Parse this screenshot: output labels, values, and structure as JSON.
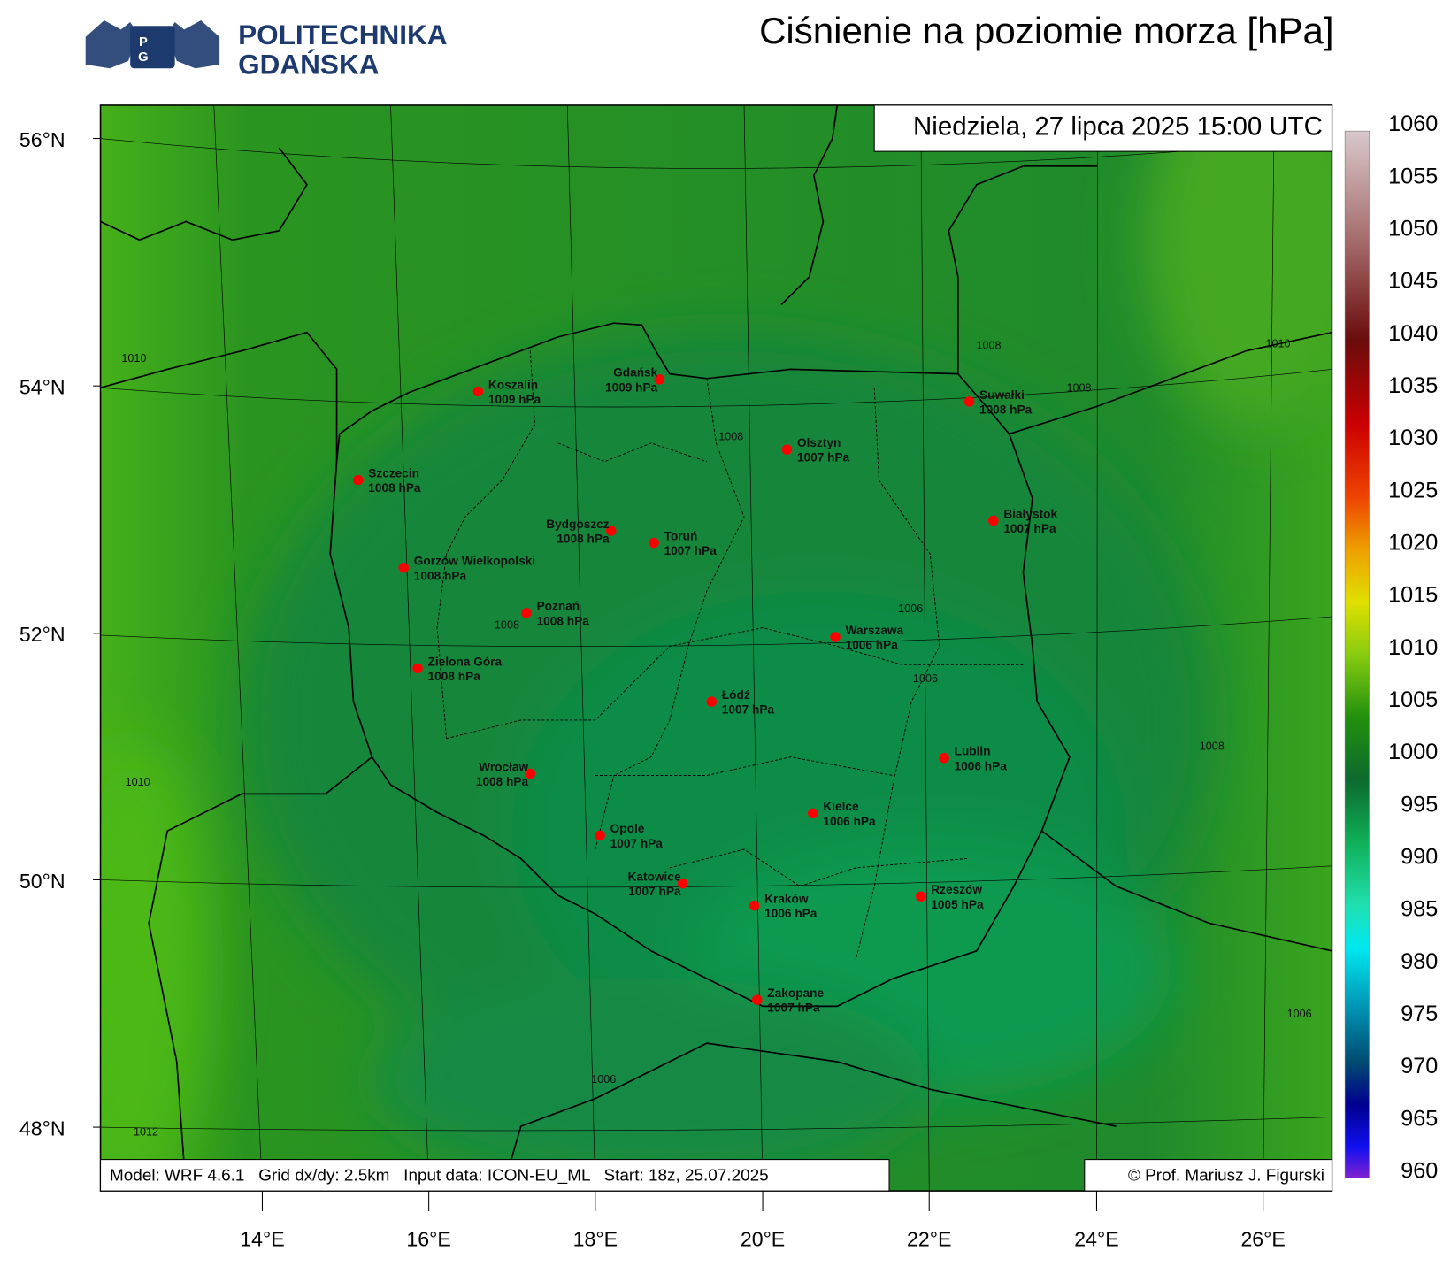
{
  "header": {
    "logo": {
      "shield": [
        "P",
        "G"
      ],
      "line1": "POLITECHNIKA",
      "line2": "GDAŃSKA"
    },
    "title": "Ciśnienie na poziomie morza [hPa]"
  },
  "map": {
    "date": "Niedziela, 27 lipca 2025 15:00 UTC",
    "footer": "Model: WRF 4.6.1   Grid dx/dy: 2.5km   Input data: ICON-EU_ML   Start: 18z, 25.07.2025",
    "copyright": "© Prof. Mariusz J. Figurski",
    "lat_labels": [
      "56°N",
      "54°N",
      "52°N",
      "50°N",
      "48°N"
    ],
    "lon_labels": [
      "14°E",
      "16°E",
      "18°E",
      "20°E",
      "22°E",
      "24°E",
      "26°E"
    ],
    "cities": [
      {
        "name": "Koszalin",
        "value": "1009 hPa"
      },
      {
        "name": "Gdańsk",
        "value": "1009 hPa"
      },
      {
        "name": "Suwałki",
        "value": "1008 hPa"
      },
      {
        "name": "Olsztyn",
        "value": "1007 hPa"
      },
      {
        "name": "Szczecin",
        "value": "1008 hPa"
      },
      {
        "name": "Bydgoszcz",
        "value": "1008 hPa"
      },
      {
        "name": "Toruń",
        "value": "1007 hPa"
      },
      {
        "name": "Białystok",
        "value": "1007 hPa"
      },
      {
        "name": "Gorzów Wielkopolski",
        "value": "1008 hPa"
      },
      {
        "name": "Poznań",
        "value": "1008 hPa"
      },
      {
        "name": "Warszawa",
        "value": "1006 hPa"
      },
      {
        "name": "Zielona Góra",
        "value": "1008 hPa"
      },
      {
        "name": "Łódź",
        "value": "1007 hPa"
      },
      {
        "name": "Lublin",
        "value": "1006 hPa"
      },
      {
        "name": "Wrocław",
        "value": "1008 hPa"
      },
      {
        "name": "Kielce",
        "value": "1006 hPa"
      },
      {
        "name": "Opole",
        "value": "1007 hPa"
      },
      {
        "name": "Katowice",
        "value": "1007 hPa"
      },
      {
        "name": "Kraków",
        "value": "1006 hPa"
      },
      {
        "name": "Rzeszów",
        "value": "1005 hPa"
      },
      {
        "name": "Zakopane",
        "value": "1007 hPa"
      }
    ],
    "contour_labels": [
      "1010",
      "1010",
      "1012",
      "1008",
      "1008",
      "1010",
      "1008",
      "1008",
      "1006",
      "1006",
      "1008",
      "1006",
      "1006"
    ]
  },
  "colorbar": {
    "ticks": [
      1060,
      1055,
      1050,
      1045,
      1040,
      1035,
      1030,
      1025,
      1020,
      1015,
      1010,
      1005,
      1000,
      995,
      990,
      985,
      980,
      975,
      970,
      965,
      960
    ]
  }
}
